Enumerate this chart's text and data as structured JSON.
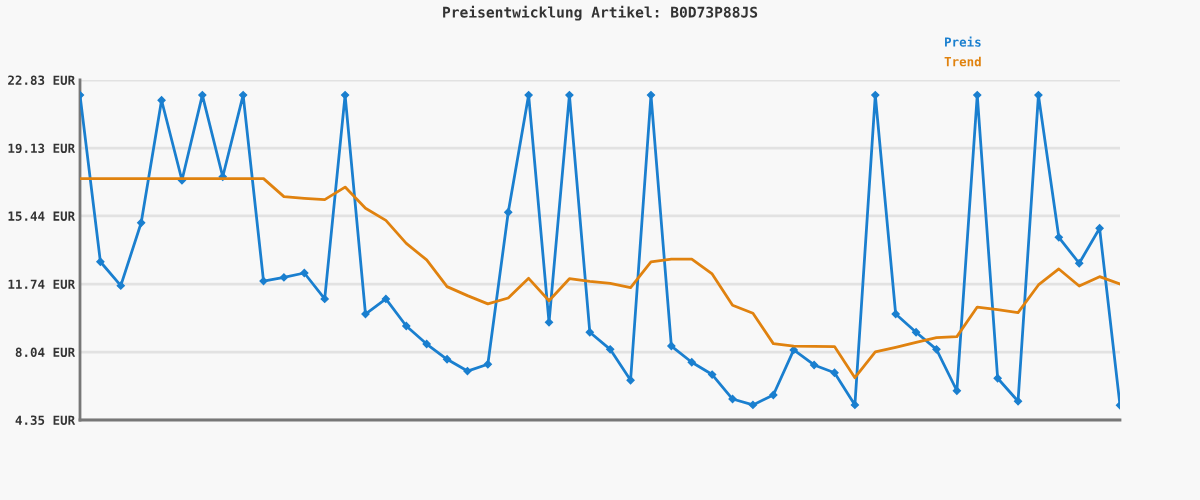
{
  "chart_data": {
    "type": "line",
    "title": "Preisentwicklung Artikel: B0D73P88JS",
    "categories": [
      null,
      null,
      null,
      null,
      null,
      null,
      null,
      null,
      null,
      null,
      null,
      null,
      null,
      null,
      null,
      null,
      null,
      null,
      null,
      null,
      null,
      null,
      null,
      null,
      null,
      null,
      null,
      null,
      null,
      null,
      null,
      null,
      null,
      null,
      null,
      null,
      null,
      null,
      null,
      null,
      null,
      null,
      null,
      null,
      null,
      null,
      null,
      null,
      null,
      null,
      null,
      null
    ],
    "series": [
      {
        "name": "Preis",
        "color": "#1a7fcf",
        "marker": "diamond",
        "values": [
          22.01,
          12.95,
          11.65,
          15.07,
          21.73,
          17.38,
          22.01,
          17.57,
          22.01,
          11.9,
          12.1,
          12.34,
          10.93,
          22.01,
          10.11,
          10.93,
          9.46,
          8.48,
          7.65,
          7.01,
          7.38,
          15.64,
          22.01,
          9.66,
          22.01,
          9.12,
          8.19,
          6.51,
          22.01,
          8.37,
          7.49,
          6.82,
          5.49,
          5.17,
          5.71,
          8.16,
          7.34,
          6.92,
          5.17,
          22.01,
          10.11,
          9.12,
          8.19,
          5.94,
          22.01,
          6.62,
          5.37,
          22.01,
          14.28,
          12.87,
          14.77,
          5.15
        ]
      },
      {
        "name": "Trend",
        "color": "#e0820f",
        "marker": "none",
        "values": [
          17.47,
          17.47,
          17.47,
          17.47,
          17.47,
          17.47,
          17.47,
          17.47,
          17.47,
          17.47,
          16.49,
          16.4,
          16.33,
          17.01,
          15.86,
          15.2,
          13.95,
          13.05,
          11.6,
          11.11,
          10.66,
          10.98,
          12.05,
          10.83,
          12.03,
          11.89,
          11.78,
          11.54,
          12.94,
          13.1,
          13.1,
          12.29,
          10.59,
          10.15,
          8.5,
          8.37,
          8.35,
          8.34,
          6.65,
          8.05,
          8.3,
          8.57,
          8.83,
          8.88,
          10.49,
          10.35,
          10.19,
          11.69,
          12.56,
          11.63,
          12.14,
          11.74
        ]
      }
    ],
    "ylim": [
      4.35,
      22.83
    ],
    "yticks": [
      {
        "value": 4.35,
        "label": "4.35 EUR"
      },
      {
        "value": 8.04,
        "label": "8.04 EUR"
      },
      {
        "value": 11.74,
        "label": "11.74 EUR"
      },
      {
        "value": 15.44,
        "label": "15.44 EUR"
      },
      {
        "value": 19.13,
        "label": "19.13 EUR"
      },
      {
        "value": 22.83,
        "label": "22.83 EUR"
      }
    ],
    "grid": "y",
    "legend": "top right",
    "line_style": "solid"
  }
}
